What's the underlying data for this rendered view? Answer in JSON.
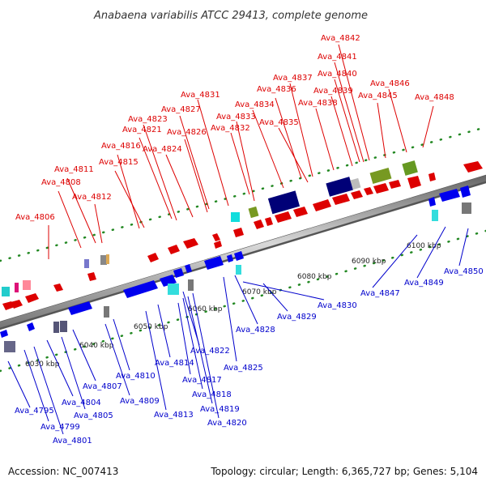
{
  "title": "Anabaena variabilis ATCC 29413, complete genome",
  "footer": {
    "accession": "Accession: NC_007413",
    "summary": "Topology: circular; Length: 6,365,727 bp; Genes: 5,104"
  },
  "colors": {
    "forward_label": "#dd0000",
    "reverse_label": "#0000cc",
    "dot": "#228822",
    "backbone": "#888888"
  },
  "ticks": [
    "6030 kbp",
    "6040 kbp",
    "6050 kbp",
    "6060 kbp",
    "6070 kbp",
    "6080 kbp",
    "6090 kbp",
    "6100 kbp"
  ],
  "forward_labels": [
    "Ava_4806",
    "Ava_4808",
    "Ava_4811",
    "Ava_4812",
    "Ava_4815",
    "Ava_4816",
    "Ava_4821",
    "Ava_4823",
    "Ava_4824",
    "Ava_4826",
    "Ava_4827",
    "Ava_4831",
    "Ava_4832",
    "Ava_4833",
    "Ava_4834",
    "Ava_4835",
    "Ava_4836",
    "Ava_4837",
    "Ava_4838",
    "Ava_4839",
    "Ava_4840",
    "Ava_4841",
    "Ava_4842",
    "Ava_4845",
    "Ava_4846",
    "Ava_4848"
  ],
  "reverse_labels": [
    "Ava_4795",
    "Ava_4799",
    "Ava_4801",
    "Ava_4804",
    "Ava_4805",
    "Ava_4807",
    "Ava_4809",
    "Ava_4810",
    "Ava_4813",
    "Ava_4814",
    "Ava_4817",
    "Ava_4818",
    "Ava_4819",
    "Ava_4820",
    "Ava_4822",
    "Ava_4825",
    "Ava_4828",
    "Ava_4829",
    "Ava_4830",
    "Ava_4847",
    "Ava_4849",
    "Ava_4850"
  ]
}
